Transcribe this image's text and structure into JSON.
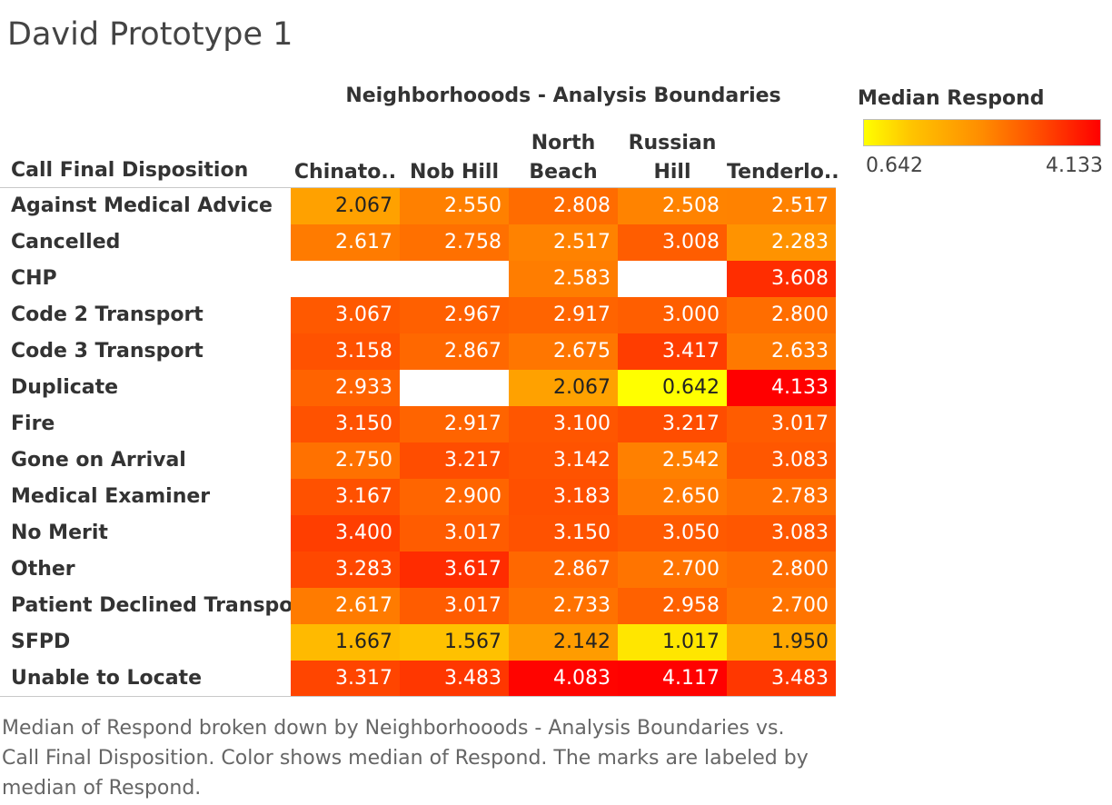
{
  "title": "David Prototype 1",
  "caption_lines": [
    "Median of Respond broken down by Neighborhooods - Analysis Boundaries vs.",
    "Call Final Disposition.  Color shows median of Respond.  The marks are labeled by",
    "median of Respond."
  ],
  "legend": {
    "title": "Median Respond",
    "min_label": "0.642",
    "max_label": "4.133",
    "colors": [
      "#ffff00",
      "#ffc400",
      "#ff8c00",
      "#ff4a00",
      "#ff0000"
    ]
  },
  "chart_data": {
    "type": "heatmap",
    "title": "David Prototype 1",
    "x_field_label": "Neighborhooods - Analysis Boundaries",
    "y_field_label": "Call Final Disposition",
    "color_label": "Median Respond",
    "color_range": [
      0.642,
      4.133
    ],
    "columns": [
      "Chinato..",
      "Nob Hill",
      "North\nBeach",
      "Russian\nHill",
      "Tenderlo.."
    ],
    "rows": [
      "Against Medical Advice",
      "Cancelled",
      "CHP",
      "Code 2 Transport",
      "Code 3 Transport",
      "Duplicate",
      "Fire",
      "Gone on Arrival",
      "Medical Examiner",
      "No Merit",
      "Other",
      "Patient Declined Transport",
      "SFPD",
      "Unable to Locate"
    ],
    "values": [
      [
        2.067,
        2.55,
        2.808,
        2.508,
        2.517
      ],
      [
        2.617,
        2.758,
        2.517,
        3.008,
        2.283
      ],
      [
        null,
        null,
        2.583,
        null,
        3.608
      ],
      [
        3.067,
        2.967,
        2.917,
        3.0,
        2.8
      ],
      [
        3.158,
        2.867,
        2.675,
        3.417,
        2.633
      ],
      [
        2.933,
        null,
        2.067,
        0.642,
        4.133
      ],
      [
        3.15,
        2.917,
        3.1,
        3.217,
        3.017
      ],
      [
        2.75,
        3.217,
        3.142,
        2.542,
        3.083
      ],
      [
        3.167,
        2.9,
        3.183,
        2.65,
        2.783
      ],
      [
        3.4,
        3.017,
        3.15,
        3.05,
        3.083
      ],
      [
        3.283,
        3.617,
        2.867,
        2.7,
        2.8
      ],
      [
        2.617,
        3.017,
        2.733,
        2.958,
        2.7
      ],
      [
        1.667,
        1.567,
        2.142,
        1.017,
        1.95
      ],
      [
        3.317,
        3.483,
        4.083,
        4.117,
        3.483
      ]
    ]
  }
}
